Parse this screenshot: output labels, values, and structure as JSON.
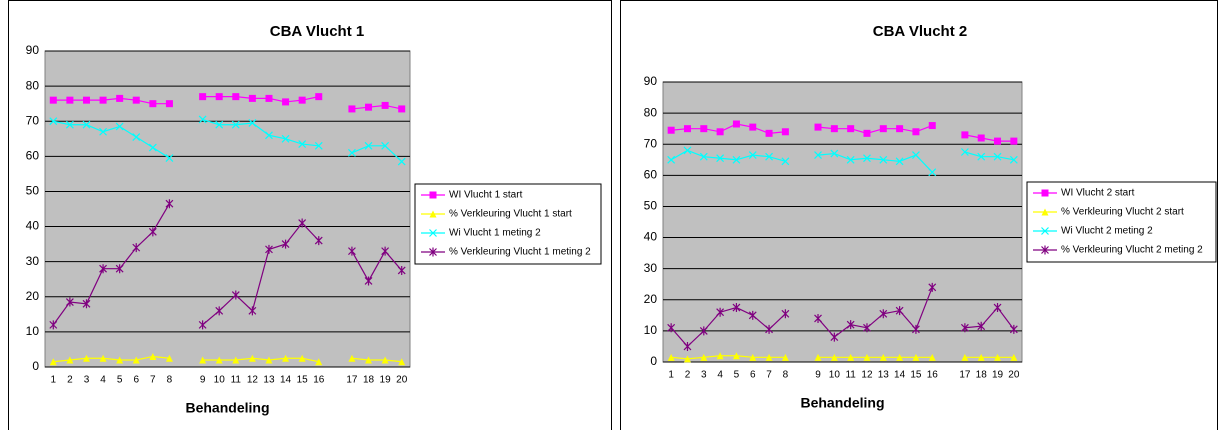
{
  "chart_data": [
    {
      "type": "line",
      "title": "CBA Vlucht 1",
      "x_label": "Behandeling",
      "categories": [
        "1",
        "2",
        "3",
        "4",
        "5",
        "6",
        "7",
        "8",
        null,
        "9",
        "10",
        "11",
        "12",
        "13",
        "14",
        "15",
        "16",
        null,
        "17",
        "18",
        "19",
        "20"
      ],
      "ylim": [
        0,
        90
      ],
      "yticks": [
        0,
        10,
        20,
        30,
        40,
        50,
        60,
        70,
        80,
        90
      ],
      "grid": true,
      "legend": "right",
      "series": [
        {
          "name": "WI Vlucht 1 start",
          "color": "#ff00ff",
          "marker": "square",
          "values": [
            76,
            76,
            76,
            76,
            76.5,
            76,
            75,
            75,
            null,
            77,
            77,
            77,
            76.5,
            76.5,
            75.5,
            76,
            77,
            null,
            73.5,
            74,
            74.5,
            73.5
          ]
        },
        {
          "name": "% Verkleuring Vlucht 1 start",
          "color": "#ffff00",
          "marker": "triangle",
          "values": [
            1.5,
            2,
            2.5,
            2.5,
            2,
            2,
            3,
            2.5,
            null,
            2,
            2,
            2,
            2.5,
            2,
            2.5,
            2.5,
            1.5,
            null,
            2.5,
            2,
            2,
            1.5
          ]
        },
        {
          "name": "Wi Vlucht 1 meting 2",
          "color": "#00ffff",
          "marker": "x",
          "values": [
            70,
            69,
            69,
            67,
            68.5,
            65.5,
            62.5,
            59.5,
            null,
            70.5,
            69,
            69,
            69.5,
            66,
            65,
            63.5,
            63,
            null,
            61,
            63,
            63,
            58.5
          ]
        },
        {
          "name": "% Verkleuring Vlucht 1 meting 2",
          "color": "#800080",
          "marker": "star",
          "values": [
            12,
            18.5,
            18,
            28,
            28,
            34,
            38.5,
            46.5,
            null,
            12,
            16,
            20.5,
            16,
            33.5,
            35,
            41,
            36,
            null,
            33,
            24.5,
            33,
            27.5
          ]
        }
      ]
    },
    {
      "type": "line",
      "title": "CBA Vlucht 2",
      "x_label": "Behandeling",
      "categories": [
        "1",
        "2",
        "3",
        "4",
        "5",
        "6",
        "7",
        "8",
        null,
        "9",
        "10",
        "11",
        "12",
        "13",
        "14",
        "15",
        "16",
        null,
        "17",
        "18",
        "19",
        "20"
      ],
      "ylim": [
        0,
        90
      ],
      "yticks": [
        0,
        10,
        20,
        30,
        40,
        50,
        60,
        70,
        80,
        90
      ],
      "grid": true,
      "legend": "right",
      "series": [
        {
          "name": "WI Vlucht 2 start",
          "color": "#ff00ff",
          "marker": "square",
          "values": [
            74.5,
            75,
            75,
            74,
            76.5,
            75.5,
            73.5,
            74,
            null,
            75.5,
            75,
            75,
            73.5,
            75,
            75,
            74,
            76,
            null,
            73,
            72,
            71,
            71
          ]
        },
        {
          "name": "% Verkleuring Vlucht 2 start",
          "color": "#ffff00",
          "marker": "triangle",
          "values": [
            1.5,
            1,
            1.5,
            2,
            2,
            1.5,
            1.5,
            1.5,
            null,
            1.5,
            1.5,
            1.5,
            1.5,
            1.5,
            1.5,
            1.5,
            1.5,
            null,
            1.5,
            1.5,
            1.5,
            1.5
          ]
        },
        {
          "name": "Wi Vlucht 2 meting 2",
          "color": "#00ffff",
          "marker": "x",
          "values": [
            65,
            68,
            66,
            65.5,
            65,
            66.5,
            66,
            64.5,
            null,
            66.5,
            67,
            65,
            65.5,
            65,
            64.5,
            66.5,
            61,
            null,
            67.5,
            66,
            66,
            65
          ]
        },
        {
          "name": "% Verkleuring Vlucht 2 meting 2",
          "color": "#800080",
          "marker": "star",
          "values": [
            11,
            5,
            10,
            16,
            17.5,
            15,
            10.5,
            15.5,
            null,
            14,
            8,
            12,
            11,
            15.5,
            16.5,
            10.5,
            24,
            null,
            11,
            11.5,
            17.5,
            10.5
          ]
        }
      ]
    }
  ]
}
